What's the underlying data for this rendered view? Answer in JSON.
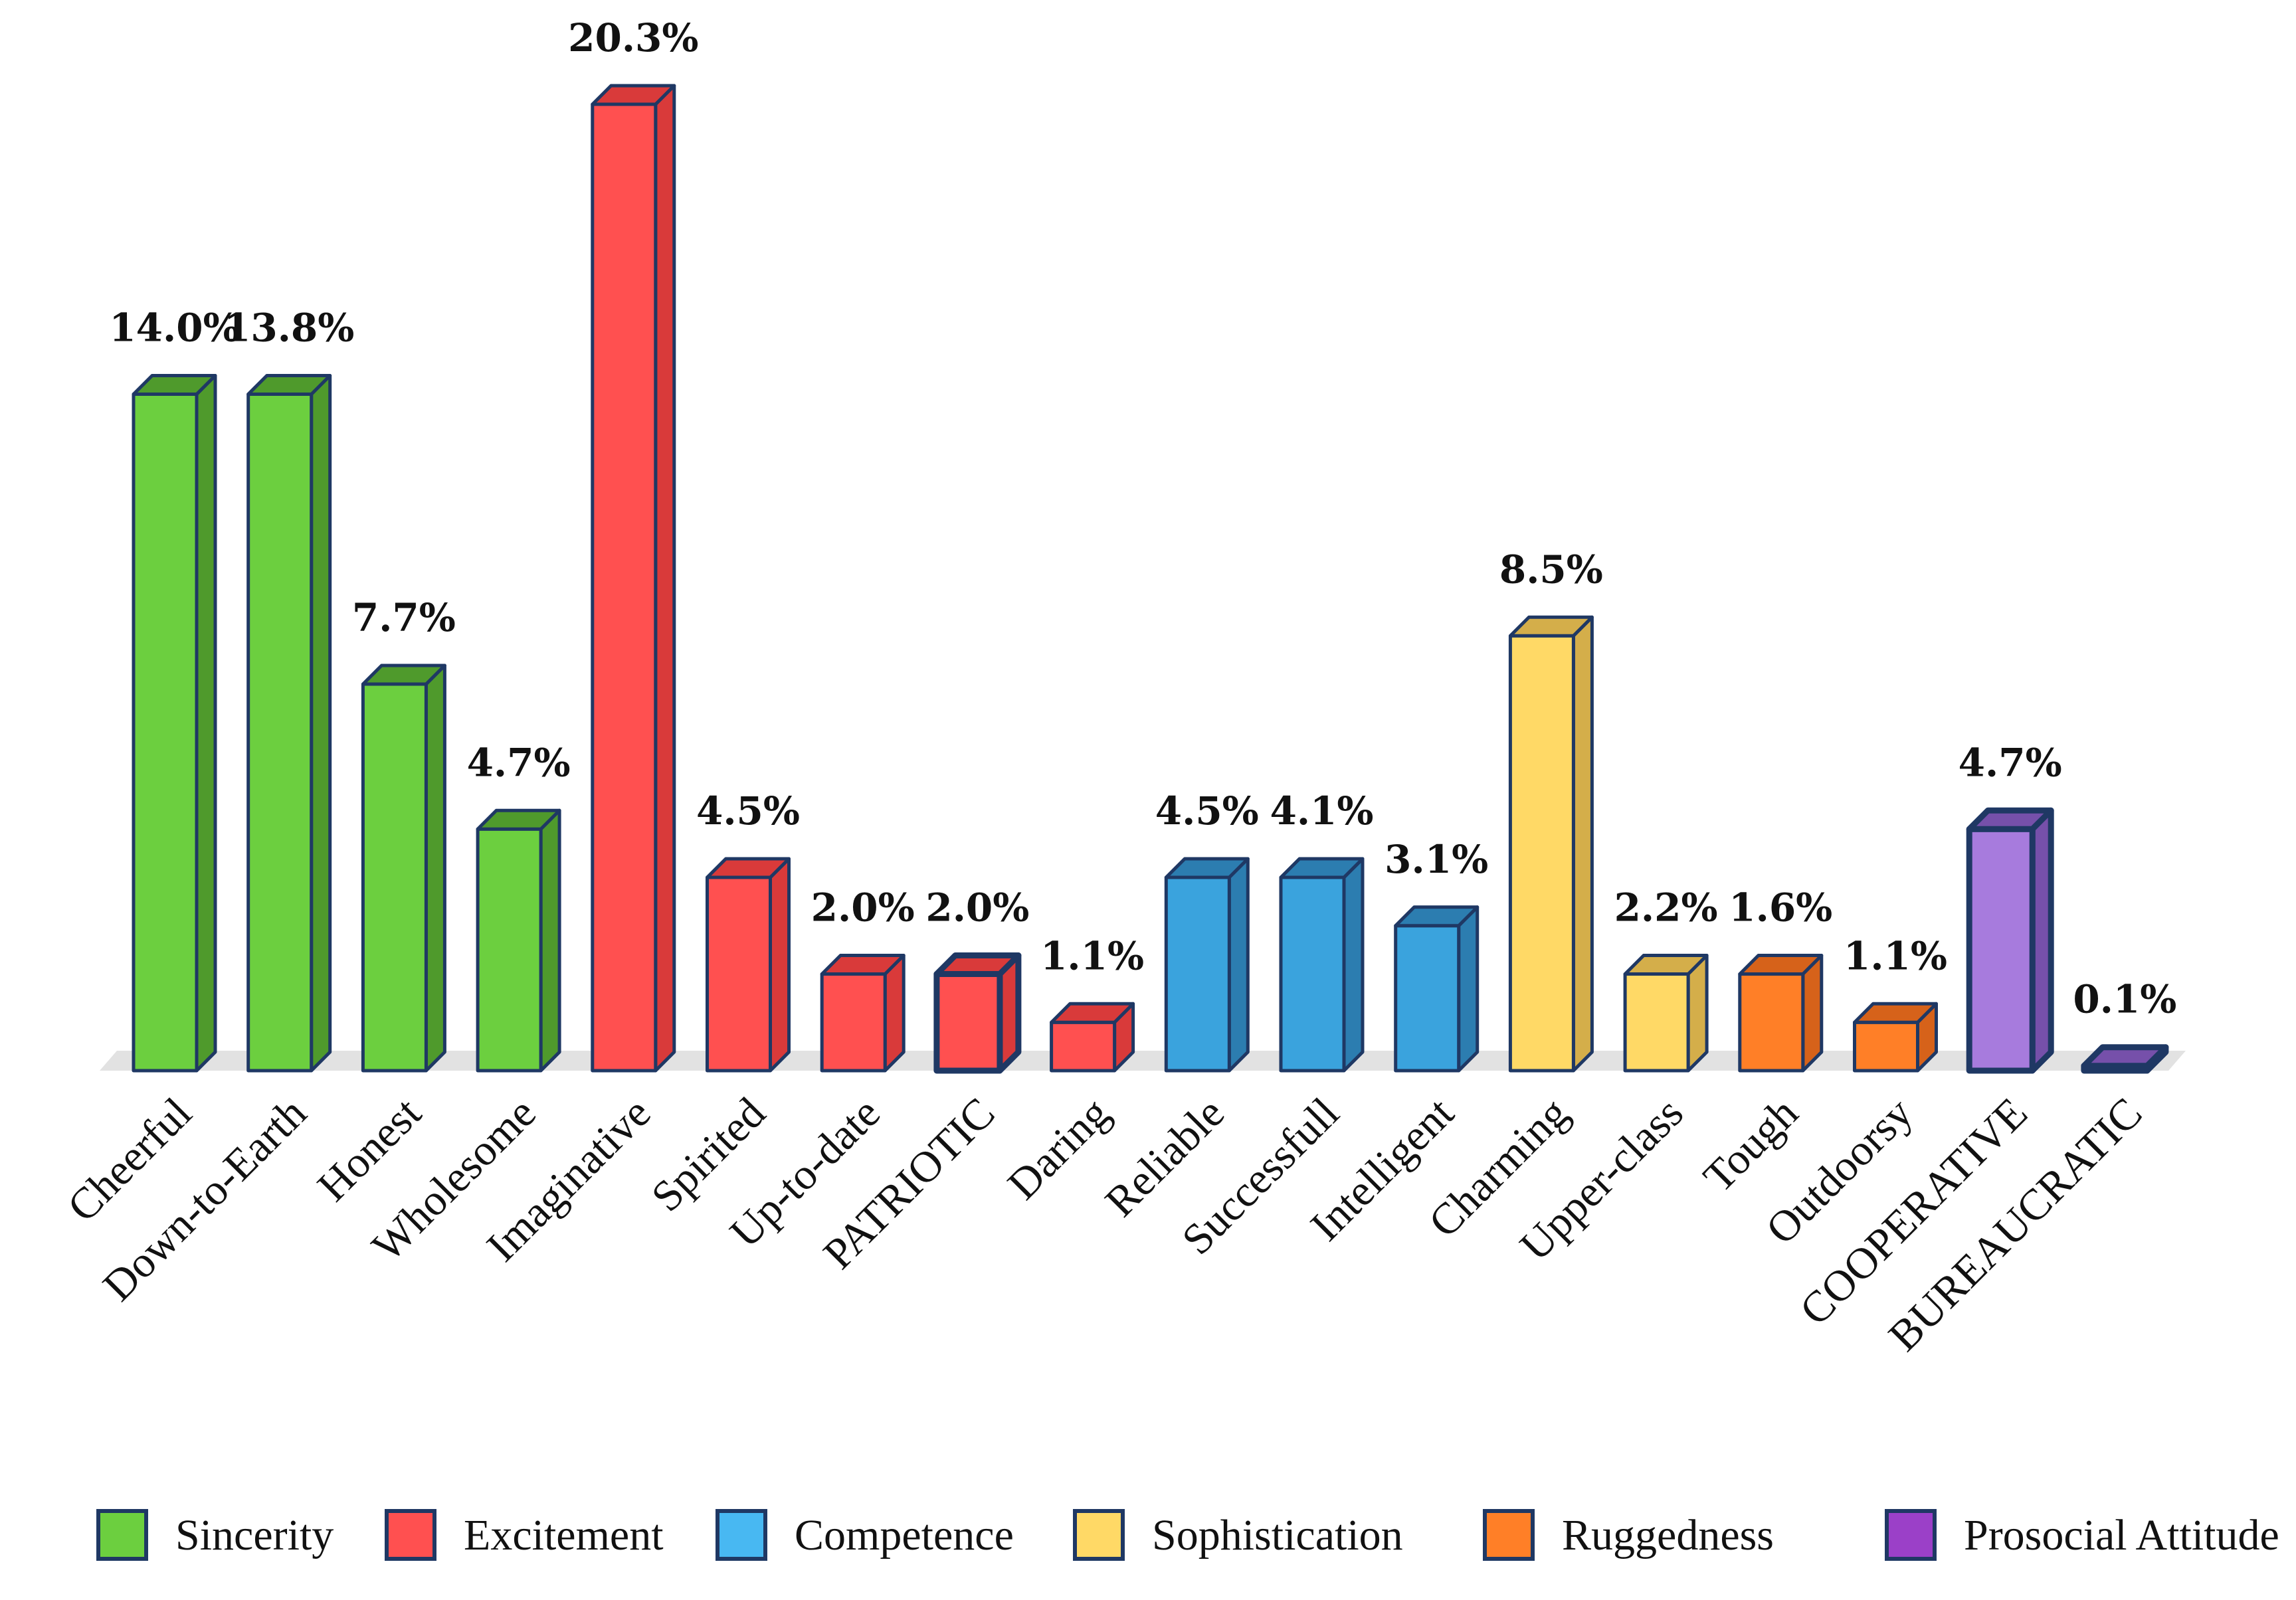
{
  "chart_data": {
    "type": "bar",
    "title": "",
    "xlabel": "",
    "ylabel": "",
    "ylim": [
      0,
      21
    ],
    "categories": [
      "Cheerful",
      "Down-to-Earth",
      "Honest",
      "Wholesome",
      "Imaginative",
      "Spirited",
      "Up-to-date",
      "PATRIOTIC",
      "Daring",
      "Reliable",
      "Successfull",
      "Intelligent",
      "Charming",
      "Upper-class",
      "Tough",
      "Outdoorsy",
      "COOPERATIVE",
      "BUREAUCRATIC"
    ],
    "values": [
      14.0,
      13.8,
      7.7,
      4.7,
      20.3,
      4.5,
      2.0,
      2.0,
      1.1,
      4.5,
      4.1,
      3.1,
      8.5,
      2.2,
      1.6,
      1.1,
      4.7,
      0.1
    ],
    "plotted_values": [
      14.0,
      14.0,
      8.0,
      5.0,
      20.0,
      4.0,
      2.0,
      2.0,
      1.0,
      4.0,
      4.0,
      3.0,
      9.0,
      2.0,
      2.0,
      1.0,
      5.0,
      0.1
    ],
    "value_labels": [
      "14.0%",
      "13.8%",
      "7.7%",
      "4.7%",
      "20.3%",
      "4.5%",
      "2.0%",
      "2.0%",
      "1.1%",
      "4.5%",
      "4.1%",
      "3.1%",
      "8.5%",
      "2.2%",
      "1.6%",
      "1.1%",
      "4.7%",
      "0.1%"
    ],
    "groups": [
      "Sincerity",
      "Sincerity",
      "Sincerity",
      "Sincerity",
      "Excitement",
      "Excitement",
      "Excitement",
      "Excitement",
      "Excitement",
      "Competence",
      "Competence",
      "Competence",
      "Sophistication",
      "Sophistication",
      "Ruggedness",
      "Ruggedness",
      "Prosocial Attitude",
      "Prosocial Attitude"
    ],
    "emphasized": [
      false,
      false,
      false,
      false,
      false,
      false,
      false,
      true,
      false,
      false,
      false,
      false,
      false,
      false,
      false,
      false,
      true,
      true
    ],
    "legend": [
      {
        "name": "Sincerity",
        "color": "#6CCF3F",
        "side": "#4F9A2C",
        "swatch": "#6CCF3F"
      },
      {
        "name": "Excitement",
        "color": "#FF5050",
        "side": "#D93A3A",
        "swatch": "#FF5050"
      },
      {
        "name": "Competence",
        "color": "#3AA3DD",
        "side": "#2C7DB0",
        "swatch": "#48B8F2"
      },
      {
        "name": "Sophistication",
        "color": "#FFD966",
        "side": "#D4AE4A",
        "swatch": "#FFD966"
      },
      {
        "name": "Ruggedness",
        "color": "#FF7F27",
        "side": "#D6621A",
        "swatch": "#FF7F27"
      },
      {
        "name": "Prosocial Attitude",
        "color": "#A77BDD",
        "side": "#7650AA",
        "swatch": "#9B40C8"
      }
    ],
    "legend_position": "bottom",
    "grid": false
  }
}
